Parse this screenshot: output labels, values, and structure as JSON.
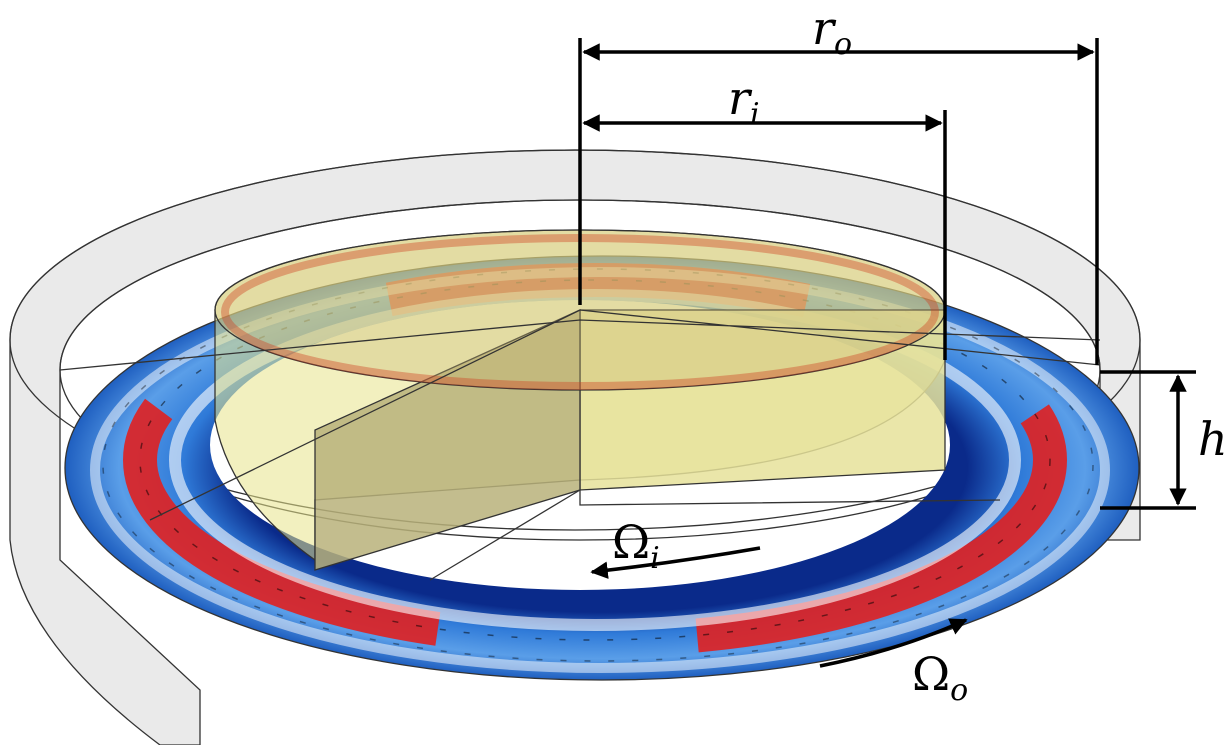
{
  "labels": {
    "outer_radius": {
      "symbol": "r",
      "subscript": "o"
    },
    "inner_radius": {
      "symbol": "r",
      "subscript": "i"
    },
    "height": "h",
    "inner_rotation": {
      "symbol": "Ω",
      "subscript": "i"
    },
    "outer_rotation": {
      "symbol": "Ω",
      "subscript": "o"
    }
  }
}
